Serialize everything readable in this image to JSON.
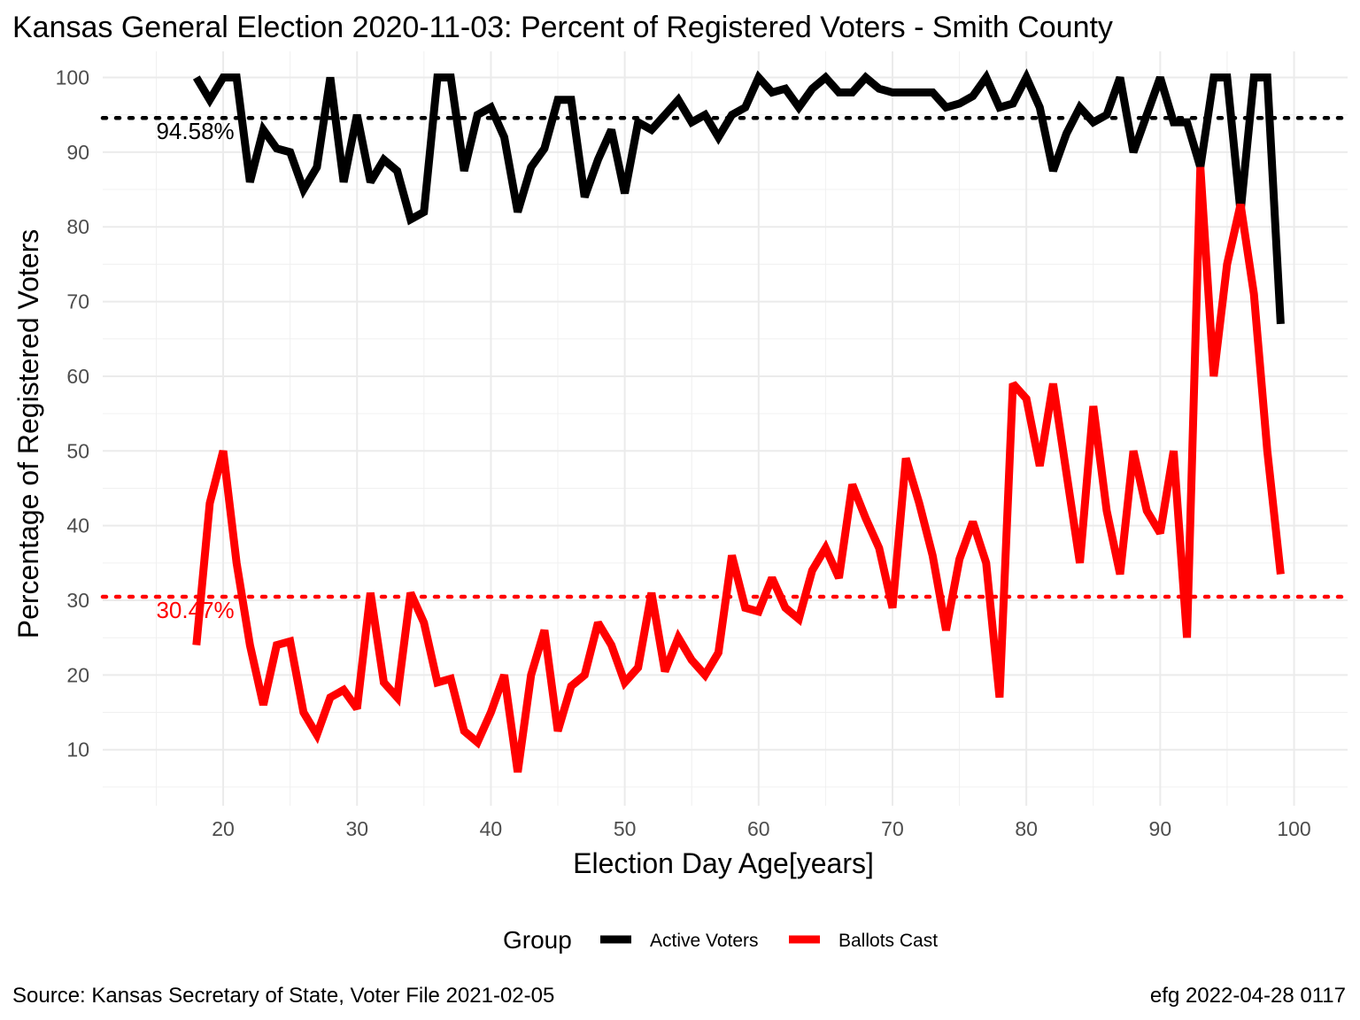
{
  "chart_data": {
    "type": "line",
    "title": "Kansas General Election 2020-11-03:  Percent of Registered Voters - Smith County",
    "xlabel": "Election Day Age[years]",
    "ylabel": "Percentage of Registered Voters",
    "xlim": [
      11,
      104
    ],
    "ylim": [
      2.5,
      103.5
    ],
    "x_ticks": [
      20,
      30,
      40,
      50,
      60,
      70,
      80,
      90,
      100
    ],
    "y_ticks": [
      10,
      20,
      30,
      40,
      50,
      60,
      70,
      80,
      90,
      100
    ],
    "grid": true,
    "legend": {
      "title": "Group",
      "position": "bottom"
    },
    "x": [
      18,
      19,
      20,
      21,
      22,
      23,
      24,
      25,
      26,
      27,
      28,
      29,
      30,
      31,
      32,
      33,
      34,
      35,
      36,
      37,
      38,
      39,
      40,
      41,
      42,
      43,
      44,
      45,
      46,
      47,
      48,
      49,
      50,
      51,
      52,
      53,
      54,
      55,
      56,
      57,
      58,
      59,
      60,
      61,
      62,
      63,
      64,
      65,
      66,
      67,
      68,
      69,
      70,
      71,
      72,
      73,
      74,
      75,
      76,
      77,
      78,
      79,
      80,
      81,
      82,
      83,
      84,
      85,
      86,
      87,
      88,
      89,
      90,
      91,
      92,
      93,
      94,
      95,
      96,
      97,
      98,
      99
    ],
    "series": [
      {
        "name": "Active Voters",
        "color": "#000000",
        "values": [
          100,
          97,
          100,
          100,
          86,
          93,
          90.5,
          90,
          85,
          88,
          100,
          86,
          95,
          86,
          89,
          87.5,
          81,
          82,
          100,
          100,
          87.5,
          95,
          96,
          92,
          82,
          88,
          90.5,
          97,
          97,
          84,
          89,
          93,
          84.5,
          94,
          93,
          95,
          97,
          94,
          95,
          92,
          95,
          96,
          100,
          98,
          98.5,
          96,
          98.5,
          100,
          98,
          98,
          100,
          98.5,
          98,
          98,
          98,
          98,
          96,
          96.5,
          97.5,
          100,
          96,
          96.5,
          100,
          96,
          87.5,
          92.5,
          96,
          94,
          95,
          100,
          90,
          95,
          100,
          94,
          94,
          88,
          100,
          100,
          82,
          100,
          100,
          67
        ]
      },
      {
        "name": "Ballots Cast",
        "color": "#ff0000",
        "values": [
          24,
          43,
          50,
          35,
          24,
          16,
          24,
          24.5,
          15,
          12,
          17,
          18,
          15.5,
          31,
          19,
          17,
          31,
          27,
          19,
          19.5,
          12.5,
          11,
          15,
          20,
          7,
          20,
          26,
          12.5,
          18.5,
          20,
          27,
          24,
          19,
          21,
          31,
          20.5,
          25,
          22,
          20,
          23,
          36,
          29,
          28.5,
          33,
          29,
          27.5,
          34,
          37,
          33,
          45.5,
          41,
          37,
          29,
          49,
          43,
          36,
          26,
          35.5,
          40.5,
          35,
          17,
          59,
          57,
          48,
          59,
          47,
          35,
          56,
          42,
          33.5,
          50,
          42,
          39,
          50,
          25,
          88,
          60,
          75,
          83,
          71,
          50,
          33.5
        ]
      }
    ],
    "reference_lines": [
      {
        "y": 94.58,
        "label": "94.58%",
        "color": "#000000"
      },
      {
        "y": 30.47,
        "label": "30.47%",
        "color": "#ff0000"
      }
    ],
    "caption_left": "Source:  Kansas Secretary of State, Voter File  2021-02-05",
    "caption_right": "efg 2022-04-28 0117"
  }
}
